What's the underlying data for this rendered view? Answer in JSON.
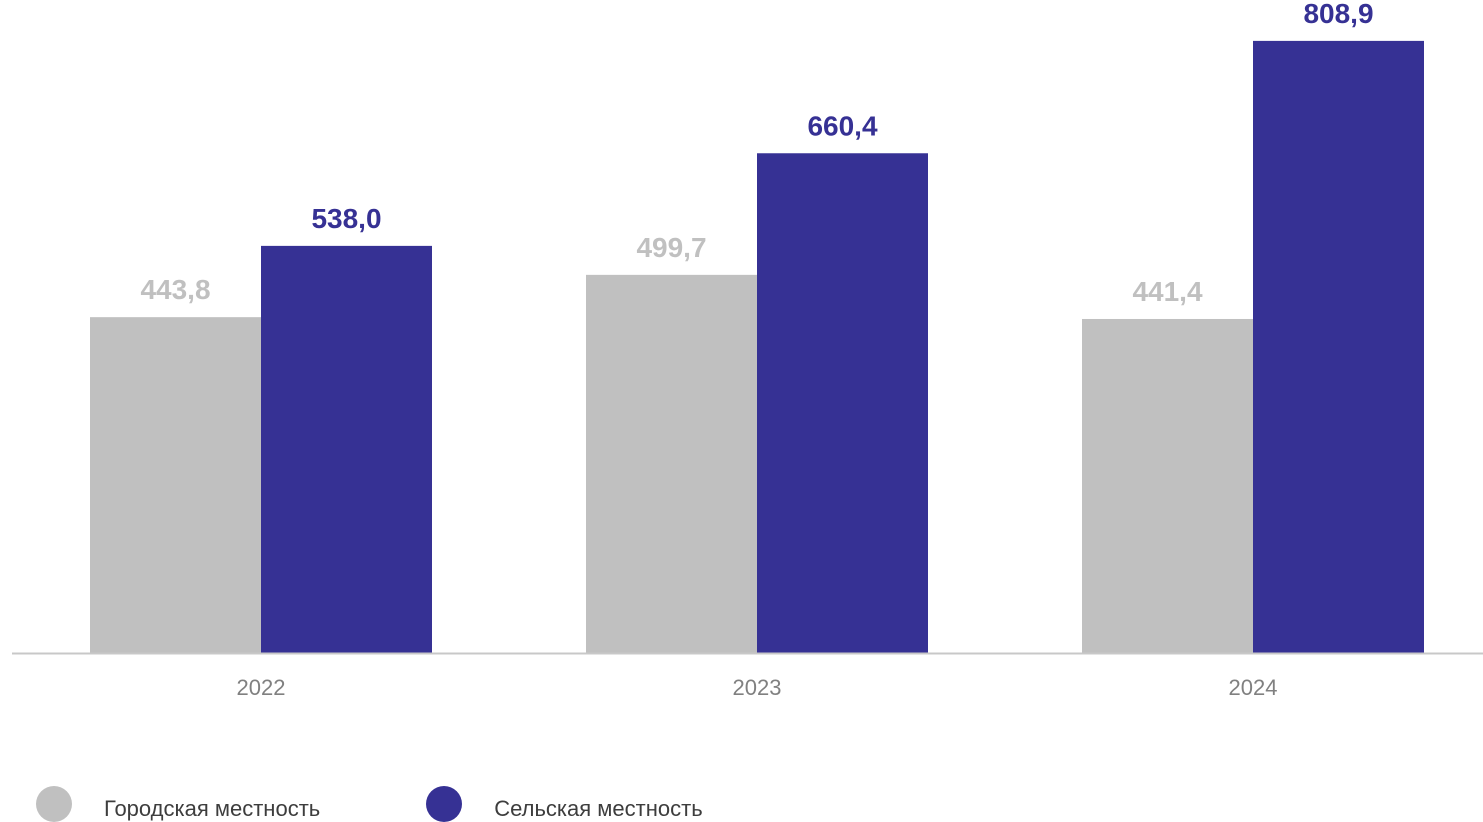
{
  "chart_data": {
    "type": "bar",
    "categories": [
      "2022",
      "2023",
      "2024"
    ],
    "series": [
      {
        "name": "Городская местность",
        "values": [
          443.8,
          499.7,
          441.4
        ],
        "labels": [
          "443,8",
          "499,7",
          "441,4"
        ],
        "color": "#c0c0c0",
        "label_color": "#c0c0c0"
      },
      {
        "name": "Сельская местность",
        "values": [
          538.0,
          660.4,
          808.9
        ],
        "labels": [
          "538,0",
          "660,4",
          "808,9"
        ],
        "color": "#363194",
        "label_color": "#363194"
      }
    ],
    "title": "",
    "xlabel": "",
    "ylabel": "",
    "ylim": [
      0,
      818
    ],
    "grid": false,
    "legend_position": "bottom-left",
    "axis_color": "#c8c8c8"
  }
}
